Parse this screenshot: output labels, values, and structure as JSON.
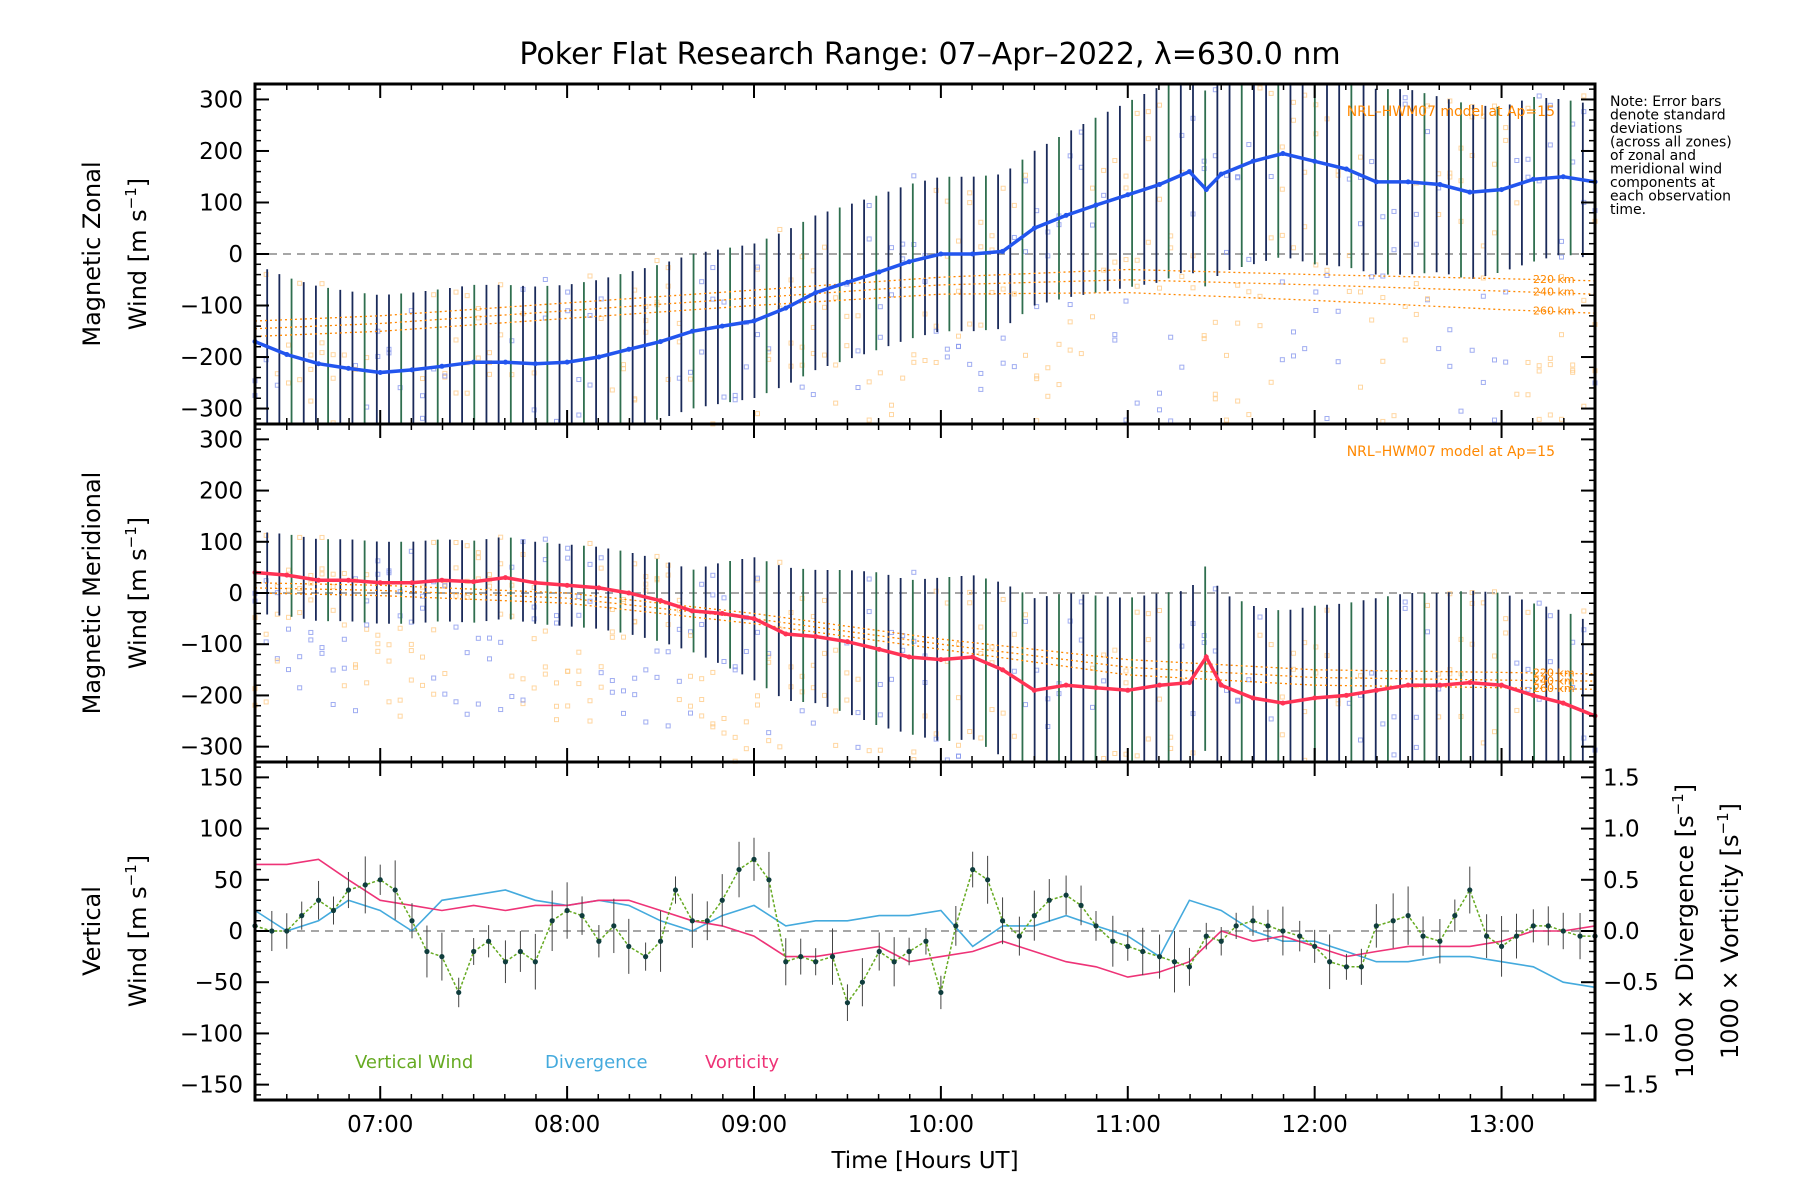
{
  "title": "Poker Flat Research Range: 07–Apr–2022, λ=630.0 nm",
  "note_lines": [
    "Note: Error bars",
    "denote standard",
    "deviations",
    "(across all zones)",
    "of zonal and",
    "meridional wind",
    "components at",
    "each observation",
    "time."
  ],
  "colors": {
    "zonal": "#2255ee",
    "meridional": "#ff3355",
    "vertical": "#66aa22",
    "divergence": "#44aadd",
    "vorticity": "#ee3377",
    "model": "#ff8800",
    "errorbar": "#1a2a5a",
    "scatter_blue": "#8899ee",
    "scatter_orange": "#ffcc88"
  },
  "chart_data": [
    {
      "type": "line",
      "panel": "zonal",
      "xlabel": "",
      "ylabel_line1": "Magnetic Zonal",
      "ylabel_line2": "Wind [m s",
      "ylabel_sup": "−1",
      "ylabel_close": "]",
      "xlim": [
        6.33,
        13.5
      ],
      "ylim": [
        -330,
        330
      ],
      "yticks": [
        -300,
        -200,
        -100,
        0,
        100,
        200,
        300
      ],
      "ytick_labels": [
        "−300",
        "−200",
        "−100",
        "0",
        "100",
        "200",
        "300"
      ],
      "model_label": "NRL–HWM07 model at Ap=15",
      "model_altitudes": [
        "220 km",
        "240 km",
        "260 km"
      ],
      "series": [
        {
          "name": "Magnetic Zonal Wind",
          "x": [
            6.33,
            6.5,
            6.67,
            6.83,
            7.0,
            7.17,
            7.33,
            7.5,
            7.67,
            7.83,
            8.0,
            8.17,
            8.33,
            8.5,
            8.67,
            8.83,
            9.0,
            9.17,
            9.33,
            9.5,
            9.67,
            9.83,
            10.0,
            10.17,
            10.33,
            10.5,
            10.67,
            10.83,
            11.0,
            11.17,
            11.33,
            11.42,
            11.5,
            11.67,
            11.83,
            12.0,
            12.17,
            12.33,
            12.5,
            12.67,
            12.83,
            13.0,
            13.17,
            13.33,
            13.5
          ],
          "y": [
            -170,
            -195,
            -213,
            -222,
            -230,
            -225,
            -218,
            -210,
            -210,
            -213,
            -210,
            -200,
            -185,
            -170,
            -150,
            -140,
            -130,
            -105,
            -75,
            -55,
            -35,
            -15,
            0,
            0,
            5,
            50,
            75,
            95,
            115,
            135,
            160,
            125,
            155,
            180,
            195,
            180,
            165,
            140,
            140,
            135,
            120,
            125,
            145,
            150,
            140
          ],
          "err": [
            150,
            150,
            150,
            150,
            150,
            150,
            150,
            150,
            150,
            150,
            150,
            150,
            150,
            150,
            150,
            150,
            150,
            150,
            150,
            150,
            150,
            150,
            150,
            150,
            150,
            150,
            160,
            170,
            180,
            190,
            190,
            190,
            190,
            200,
            200,
            200,
            190,
            180,
            180,
            170,
            170,
            160,
            160,
            150,
            150
          ]
        },
        {
          "name": "HWM07 220 km",
          "x": [
            6.33,
            7.0,
            8.0,
            9.0,
            10.0,
            11.0,
            12.0,
            13.0,
            13.5
          ],
          "y": [
            -130,
            -120,
            -95,
            -70,
            -45,
            -30,
            -40,
            -48,
            -52
          ]
        },
        {
          "name": "HWM07 240 km",
          "x": [
            6.33,
            7.0,
            8.0,
            9.0,
            10.0,
            11.0,
            12.0,
            13.0,
            13.5
          ],
          "y": [
            -145,
            -135,
            -110,
            -85,
            -60,
            -50,
            -60,
            -72,
            -78
          ]
        },
        {
          "name": "HWM07 260 km",
          "x": [
            6.33,
            7.0,
            8.0,
            9.0,
            10.0,
            11.0,
            12.0,
            13.0,
            13.5
          ],
          "y": [
            -160,
            -150,
            -125,
            -100,
            -78,
            -75,
            -90,
            -108,
            -115
          ]
        }
      ]
    },
    {
      "type": "line",
      "panel": "meridional",
      "xlabel": "",
      "ylabel_line1": "Magnetic Meridional",
      "ylabel_line2": "Wind [m s",
      "ylabel_sup": "−1",
      "ylabel_close": "]",
      "xlim": [
        6.33,
        13.5
      ],
      "ylim": [
        -330,
        330
      ],
      "yticks": [
        -300,
        -200,
        -100,
        0,
        100,
        200,
        300
      ],
      "ytick_labels": [
        "−300",
        "−200",
        "−100",
        "0",
        "100",
        "200",
        "300"
      ],
      "model_label": "NRL–HWM07 model at Ap=15",
      "model_altitudes": [
        "220 km",
        "240 km",
        "260 km"
      ],
      "series": [
        {
          "name": "Magnetic Meridional Wind",
          "x": [
            6.33,
            6.5,
            6.67,
            6.83,
            7.0,
            7.17,
            7.33,
            7.5,
            7.67,
            7.83,
            8.0,
            8.17,
            8.33,
            8.5,
            8.67,
            8.83,
            9.0,
            9.17,
            9.33,
            9.5,
            9.67,
            9.83,
            10.0,
            10.17,
            10.33,
            10.5,
            10.67,
            10.83,
            11.0,
            11.17,
            11.33,
            11.42,
            11.5,
            11.67,
            11.83,
            12.0,
            12.17,
            12.33,
            12.5,
            12.67,
            12.83,
            13.0,
            13.17,
            13.33,
            13.5
          ],
          "y": [
            40,
            35,
            25,
            25,
            20,
            20,
            25,
            22,
            30,
            20,
            15,
            10,
            0,
            -15,
            -35,
            -40,
            -50,
            -80,
            -85,
            -95,
            -110,
            -125,
            -130,
            -125,
            -150,
            -190,
            -180,
            -185,
            -190,
            -180,
            -175,
            -125,
            -180,
            -205,
            -215,
            -205,
            -200,
            -190,
            -180,
            -180,
            -175,
            -180,
            -200,
            -215,
            -240
          ],
          "err": [
            80,
            80,
            80,
            80,
            80,
            80,
            80,
            80,
            80,
            80,
            80,
            80,
            80,
            80,
            80,
            100,
            120,
            130,
            130,
            140,
            150,
            150,
            160,
            160,
            170,
            180,
            180,
            180,
            180,
            180,
            180,
            180,
            180,
            180,
            180,
            180,
            180,
            180,
            180,
            180,
            180,
            180,
            180,
            180,
            180
          ]
        },
        {
          "name": "HWM07 220 km",
          "x": [
            6.33,
            7.0,
            8.0,
            9.0,
            10.0,
            11.0,
            12.0,
            13.0,
            13.5
          ],
          "y": [
            20,
            15,
            0,
            -40,
            -90,
            -130,
            -150,
            -155,
            -158
          ]
        },
        {
          "name": "HWM07 240 km",
          "x": [
            6.33,
            7.0,
            8.0,
            9.0,
            10.0,
            11.0,
            12.0,
            13.0,
            13.5
          ],
          "y": [
            10,
            5,
            -10,
            -50,
            -100,
            -145,
            -165,
            -170,
            -172
          ]
        },
        {
          "name": "HWM07 260 km",
          "x": [
            6.33,
            7.0,
            8.0,
            9.0,
            10.0,
            11.0,
            12.0,
            13.0,
            13.5
          ],
          "y": [
            0,
            -5,
            -20,
            -60,
            -110,
            -160,
            -180,
            -185,
            -188
          ]
        }
      ]
    },
    {
      "type": "line",
      "panel": "vertical",
      "xlabel": "Time [Hours UT]",
      "xticks": [
        7,
        8,
        9,
        10,
        11,
        12,
        13
      ],
      "xtick_labels": [
        "07:00",
        "08:00",
        "09:00",
        "10:00",
        "11:00",
        "12:00",
        "13:00"
      ],
      "xlim": [
        6.33,
        13.5
      ],
      "ylabel_line1": "Vertical",
      "ylabel_line2": "Wind [m s",
      "ylabel_sup": "−1",
      "ylabel_close": "]",
      "ylim": [
        -165,
        165
      ],
      "yticks": [
        -150,
        -100,
        -50,
        0,
        50,
        100,
        150
      ],
      "ytick_labels": [
        "−150",
        "−100",
        "−50",
        "0",
        "50",
        "100",
        "150"
      ],
      "y2label_div": "1000 × Divergence [s",
      "y2label_vor": "1000 × Vorticity [s",
      "y2label_sup": "−1",
      "y2label_close": "]",
      "y2lim": [
        -1.65,
        1.65
      ],
      "y2ticks": [
        -1.5,
        -1.0,
        -0.5,
        0.0,
        0.5,
        1.0,
        1.5
      ],
      "y2tick_labels": [
        "−1.5",
        "−1.0",
        "−0.5",
        "0.0",
        "0.5",
        "1.0",
        "1.5"
      ],
      "legend": [
        "Vertical Wind",
        "Divergence",
        "Vorticity"
      ],
      "series": [
        {
          "name": "Vertical Wind",
          "x": [
            6.33,
            6.42,
            6.5,
            6.58,
            6.67,
            6.75,
            6.83,
            6.92,
            7.0,
            7.08,
            7.17,
            7.25,
            7.33,
            7.42,
            7.5,
            7.58,
            7.67,
            7.75,
            7.83,
            7.92,
            8.0,
            8.08,
            8.17,
            8.25,
            8.33,
            8.42,
            8.5,
            8.58,
            8.67,
            8.75,
            8.83,
            8.92,
            9.0,
            9.08,
            9.17,
            9.25,
            9.33,
            9.42,
            9.5,
            9.58,
            9.67,
            9.75,
            9.83,
            9.92,
            10.0,
            10.08,
            10.17,
            10.25,
            10.33,
            10.42,
            10.5,
            10.58,
            10.67,
            10.75,
            10.83,
            10.92,
            11.0,
            11.08,
            11.17,
            11.25,
            11.33,
            11.42,
            11.5,
            11.58,
            11.67,
            11.75,
            11.83,
            11.92,
            12.0,
            12.08,
            12.17,
            12.25,
            12.33,
            12.42,
            12.5,
            12.58,
            12.67,
            12.75,
            12.83,
            12.92,
            13.0,
            13.08,
            13.17,
            13.25,
            13.33,
            13.42,
            13.5
          ],
          "y": [
            5,
            0,
            0,
            15,
            30,
            20,
            40,
            45,
            50,
            40,
            10,
            -20,
            -25,
            -60,
            -20,
            -10,
            -30,
            -20,
            -30,
            10,
            20,
            15,
            -10,
            5,
            -15,
            -25,
            -10,
            40,
            10,
            10,
            30,
            60,
            70,
            50,
            -30,
            -25,
            -30,
            -25,
            -70,
            -50,
            -20,
            -30,
            -20,
            -10,
            -60,
            5,
            60,
            50,
            10,
            -5,
            15,
            30,
            35,
            25,
            5,
            -10,
            -15,
            -20,
            -25,
            -30,
            -35,
            -5,
            -10,
            5,
            10,
            5,
            0,
            -5,
            -15,
            -30,
            -35,
            -35,
            5,
            10,
            15,
            -5,
            -10,
            15,
            40,
            -5,
            -15,
            -5,
            5,
            5,
            0,
            -5,
            -5
          ]
        },
        {
          "name": "Divergence",
          "x": [
            6.33,
            6.5,
            6.67,
            6.83,
            7.0,
            7.17,
            7.33,
            7.5,
            7.67,
            7.83,
            8.0,
            8.17,
            8.33,
            8.5,
            8.67,
            8.83,
            9.0,
            9.17,
            9.33,
            9.5,
            9.67,
            9.83,
            10.0,
            10.17,
            10.33,
            10.5,
            10.67,
            10.83,
            11.0,
            11.17,
            11.33,
            11.5,
            11.67,
            11.83,
            12.0,
            12.17,
            12.33,
            12.5,
            12.67,
            12.83,
            13.0,
            13.17,
            13.33,
            13.5
          ],
          "y": [
            0.2,
            0.0,
            0.1,
            0.3,
            0.2,
            0.0,
            0.3,
            0.35,
            0.4,
            0.3,
            0.25,
            0.3,
            0.25,
            0.1,
            0.0,
            0.15,
            0.25,
            0.05,
            0.1,
            0.1,
            0.15,
            0.15,
            0.2,
            -0.15,
            0.05,
            0.05,
            0.15,
            0.05,
            -0.05,
            -0.25,
            0.3,
            0.2,
            0.0,
            -0.1,
            -0.1,
            -0.2,
            -0.3,
            -0.3,
            -0.25,
            -0.25,
            -0.3,
            -0.35,
            -0.5,
            -0.55
          ]
        },
        {
          "name": "Vorticity",
          "x": [
            6.33,
            6.5,
            6.67,
            6.83,
            7.0,
            7.17,
            7.33,
            7.5,
            7.67,
            7.83,
            8.0,
            8.17,
            8.33,
            8.5,
            8.67,
            8.83,
            9.0,
            9.17,
            9.33,
            9.5,
            9.67,
            9.83,
            10.0,
            10.17,
            10.33,
            10.5,
            10.67,
            10.83,
            11.0,
            11.17,
            11.33,
            11.5,
            11.67,
            11.83,
            12.0,
            12.17,
            12.33,
            12.5,
            12.67,
            12.83,
            13.0,
            13.17,
            13.33,
            13.5
          ],
          "y": [
            0.65,
            0.65,
            0.7,
            0.5,
            0.3,
            0.25,
            0.2,
            0.25,
            0.2,
            0.25,
            0.25,
            0.3,
            0.3,
            0.2,
            0.1,
            0.05,
            -0.05,
            -0.25,
            -0.25,
            -0.2,
            -0.15,
            -0.3,
            -0.25,
            -0.2,
            -0.1,
            -0.2,
            -0.3,
            -0.35,
            -0.45,
            -0.4,
            -0.3,
            0.0,
            -0.1,
            -0.05,
            -0.15,
            -0.25,
            -0.2,
            -0.15,
            -0.15,
            -0.15,
            -0.1,
            0.0,
            0.0,
            0.05
          ]
        }
      ]
    }
  ]
}
